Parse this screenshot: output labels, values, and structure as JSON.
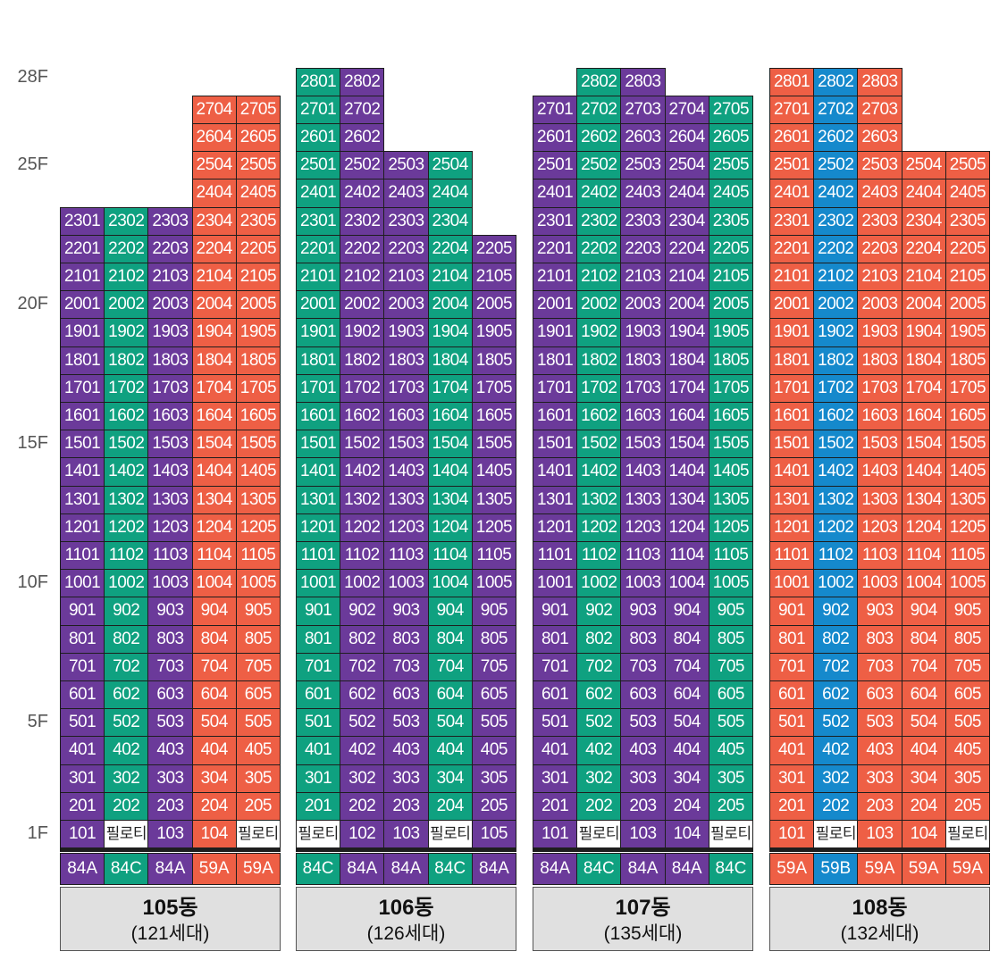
{
  "colors": {
    "purple": "#6b3a9a",
    "teal": "#0fa180",
    "orange": "#ee5f45",
    "blue": "#1589cc"
  },
  "pilotis_label": "필로티",
  "floor_labels": [
    {
      "floor": 28,
      "text": "28F"
    },
    {
      "floor": 25,
      "text": "25F"
    },
    {
      "floor": 20,
      "text": "20F"
    },
    {
      "floor": 15,
      "text": "15F"
    },
    {
      "floor": 10,
      "text": "10F"
    },
    {
      "floor": 5,
      "text": "5F"
    },
    {
      "floor": 1,
      "text": "1F"
    }
  ],
  "buildings": [
    {
      "id": "105",
      "name": "105동",
      "households": "(121세대)",
      "lines": [
        {
          "color": "purple",
          "type": "84A",
          "top_floor": 23,
          "pilotis_first": false
        },
        {
          "color": "teal",
          "type": "84C",
          "top_floor": 23,
          "pilotis_first": true
        },
        {
          "color": "purple",
          "type": "84A",
          "top_floor": 23,
          "pilotis_first": false
        },
        {
          "color": "orange",
          "type": "59A",
          "top_floor": 27,
          "pilotis_first": false
        },
        {
          "color": "orange",
          "type": "59A",
          "top_floor": 27,
          "pilotis_first": true
        }
      ]
    },
    {
      "id": "106",
      "name": "106동",
      "households": "(126세대)",
      "lines": [
        {
          "color": "teal",
          "type": "84C",
          "top_floor": 28,
          "pilotis_first": true
        },
        {
          "color": "purple",
          "type": "84A",
          "top_floor": 28,
          "pilotis_first": false
        },
        {
          "color": "purple",
          "type": "84A",
          "top_floor": 25,
          "pilotis_first": false
        },
        {
          "color": "teal",
          "type": "84C",
          "top_floor": 25,
          "pilotis_first": true
        },
        {
          "color": "purple",
          "type": "84A",
          "top_floor": 22,
          "pilotis_first": false
        }
      ]
    },
    {
      "id": "107",
      "name": "107동",
      "households": "(135세대)",
      "lines": [
        {
          "color": "purple",
          "type": "84A",
          "top_floor": 27,
          "pilotis_first": false
        },
        {
          "color": "teal",
          "type": "84C",
          "top_floor": 28,
          "pilotis_first": true
        },
        {
          "color": "purple",
          "type": "84A",
          "top_floor": 28,
          "pilotis_first": false
        },
        {
          "color": "purple",
          "type": "84A",
          "top_floor": 27,
          "pilotis_first": false
        },
        {
          "color": "teal",
          "type": "84C",
          "top_floor": 27,
          "pilotis_first": true
        }
      ]
    },
    {
      "id": "108",
      "name": "108동",
      "households": "(132세대)",
      "lines": [
        {
          "color": "orange",
          "type": "59A",
          "top_floor": 28,
          "pilotis_first": false
        },
        {
          "color": "blue",
          "type": "59B",
          "top_floor": 28,
          "pilotis_first": true
        },
        {
          "color": "orange",
          "type": "59A",
          "top_floor": 28,
          "pilotis_first": false
        },
        {
          "color": "orange",
          "type": "59A",
          "top_floor": 25,
          "pilotis_first": false
        },
        {
          "color": "orange",
          "type": "59A",
          "top_floor": 25,
          "pilotis_first": true
        }
      ]
    }
  ]
}
